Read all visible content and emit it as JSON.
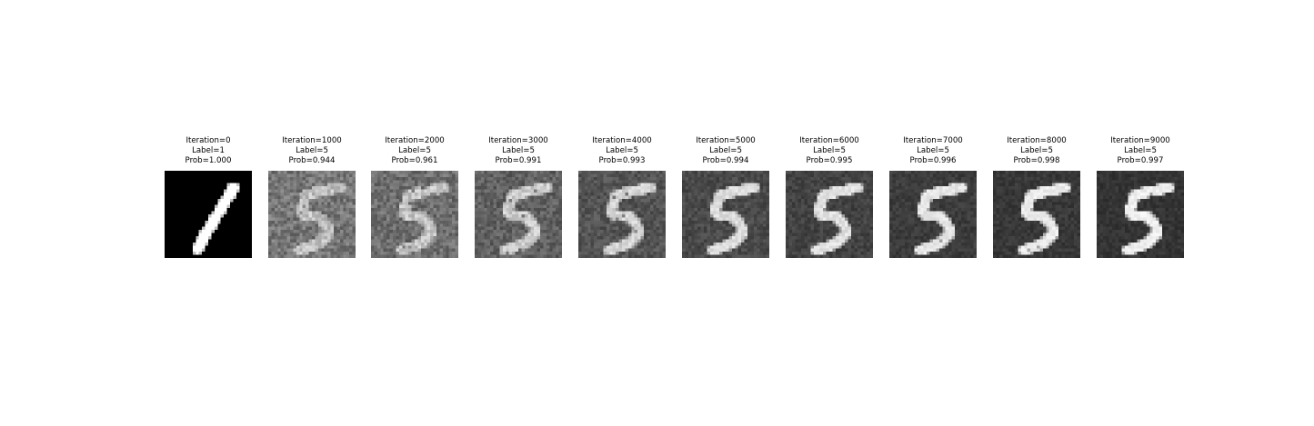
{
  "panels": [
    {
      "iteration": "Iteration=0",
      "label": "Label=1",
      "prob": "Prob=1.000",
      "digit": "one",
      "background": 0,
      "noise": 0,
      "contrast": 1.0
    },
    {
      "iteration": "Iteration=1000",
      "label": "Label=5",
      "prob": "Prob=0.944",
      "digit": "five",
      "background": 118,
      "noise": 30,
      "contrast": 0.55
    },
    {
      "iteration": "Iteration=2000",
      "label": "Label=5",
      "prob": "Prob=0.961",
      "digit": "five",
      "background": 110,
      "noise": 28,
      "contrast": 0.6
    },
    {
      "iteration": "Iteration=3000",
      "label": "Label=5",
      "prob": "Prob=0.991",
      "digit": "five",
      "background": 96,
      "noise": 24,
      "contrast": 0.68
    },
    {
      "iteration": "Iteration=4000",
      "label": "Label=5",
      "prob": "Prob=0.993",
      "digit": "five",
      "background": 84,
      "noise": 20,
      "contrast": 0.75
    },
    {
      "iteration": "Iteration=5000",
      "label": "Label=5",
      "prob": "Prob=0.994",
      "digit": "five",
      "background": 74,
      "noise": 17,
      "contrast": 0.8
    },
    {
      "iteration": "Iteration=6000",
      "label": "Label=5",
      "prob": "Prob=0.995",
      "digit": "five",
      "background": 66,
      "noise": 15,
      "contrast": 0.84
    },
    {
      "iteration": "Iteration=7000",
      "label": "Label=5",
      "prob": "Prob=0.996",
      "digit": "five",
      "background": 60,
      "noise": 13,
      "contrast": 0.87
    },
    {
      "iteration": "Iteration=8000",
      "label": "Label=5",
      "prob": "Prob=0.998",
      "digit": "five",
      "background": 56,
      "noise": 12,
      "contrast": 0.9
    },
    {
      "iteration": "Iteration=9000",
      "label": "Label=5",
      "prob": "Prob=0.997",
      "digit": "five",
      "background": 52,
      "noise": 11,
      "contrast": 0.92
    }
  ]
}
